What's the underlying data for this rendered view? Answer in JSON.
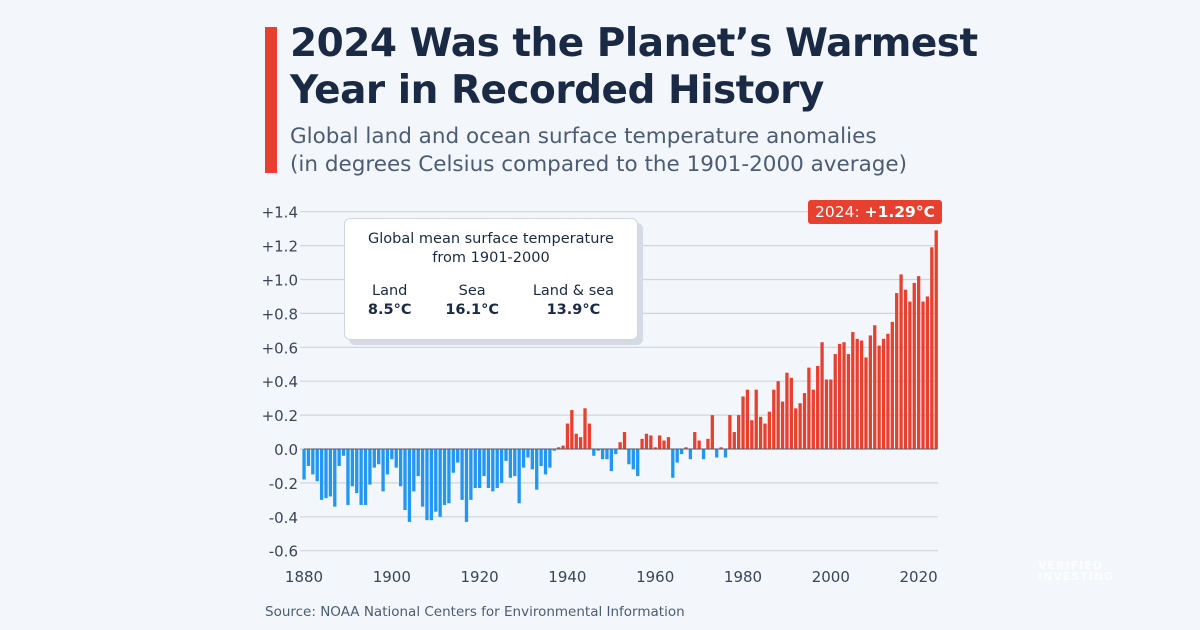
{
  "title": "2024 Was the Planet’s Warmest Year in Recorded History",
  "subtitle_line1": "Global land and ocean surface temperature anomalies",
  "subtitle_line2": "(in degrees Celsius compared to the 1901-2000 average)",
  "inset": {
    "title_line1": "Global mean surface temperature",
    "title_line2": "from 1901-2000",
    "columns": [
      {
        "label": "Land",
        "value": "8.5°C"
      },
      {
        "label": "Sea",
        "value": "16.1°C"
      },
      {
        "label": "Land & sea",
        "value": "13.9°C"
      }
    ]
  },
  "callout": {
    "year": "2024:",
    "value": "+1.29°C"
  },
  "source": "Source: NOAA National Centers for Environmental Information",
  "watermark": [
    "VERIFIED",
    "INVESTING"
  ],
  "colors": {
    "positive": "#e8402f",
    "negative": "#2196f3",
    "title": "#1b2a44",
    "background": "#f3f6fa"
  },
  "chart_data": {
    "type": "bar",
    "xlabel": "",
    "ylabel": "",
    "ylim": [
      -0.6,
      1.4
    ],
    "xlim": [
      1880,
      2024
    ],
    "grid": true,
    "y_ticks": [
      "-0.6",
      "-0.4",
      "-0.2",
      "0.0",
      "+0.2",
      "+0.4",
      "+0.6",
      "+0.8",
      "+1.0",
      "+1.2",
      "+1.4"
    ],
    "x_ticks": [
      "1880",
      "1900",
      "1920",
      "1940",
      "1960",
      "1980",
      "2000",
      "2020"
    ],
    "start_year": 1880,
    "values": [
      -0.18,
      -0.1,
      -0.15,
      -0.19,
      -0.3,
      -0.29,
      -0.28,
      -0.34,
      -0.1,
      -0.04,
      -0.33,
      -0.22,
      -0.26,
      -0.33,
      -0.33,
      -0.21,
      -0.11,
      -0.09,
      -0.25,
      -0.15,
      -0.06,
      -0.11,
      -0.22,
      -0.36,
      -0.43,
      -0.25,
      -0.16,
      -0.34,
      -0.42,
      -0.42,
      -0.37,
      -0.4,
      -0.33,
      -0.32,
      -0.14,
      -0.08,
      -0.3,
      -0.43,
      -0.3,
      -0.23,
      -0.23,
      -0.16,
      -0.23,
      -0.25,
      -0.23,
      -0.2,
      -0.07,
      -0.17,
      -0.16,
      -0.32,
      -0.11,
      -0.05,
      -0.12,
      -0.24,
      -0.1,
      -0.15,
      -0.11,
      -0.01,
      0.01,
      0.02,
      0.15,
      0.23,
      0.09,
      0.07,
      0.24,
      0.15,
      -0.04,
      -0.01,
      -0.06,
      -0.06,
      -0.13,
      -0.03,
      0.04,
      0.1,
      -0.09,
      -0.12,
      -0.16,
      0.06,
      0.09,
      0.08,
      0.01,
      0.08,
      0.05,
      0.07,
      -0.17,
      -0.08,
      -0.03,
      0.01,
      -0.06,
      0.1,
      0.05,
      -0.06,
      0.06,
      0.2,
      -0.05,
      0.01,
      -0.05,
      0.2,
      0.1,
      0.2,
      0.31,
      0.35,
      0.17,
      0.35,
      0.19,
      0.15,
      0.22,
      0.35,
      0.4,
      0.28,
      0.45,
      0.42,
      0.24,
      0.27,
      0.33,
      0.48,
      0.35,
      0.49,
      0.63,
      0.41,
      0.41,
      0.56,
      0.62,
      0.63,
      0.56,
      0.69,
      0.65,
      0.64,
      0.54,
      0.67,
      0.73,
      0.61,
      0.65,
      0.68,
      0.75,
      0.92,
      1.03,
      0.94,
      0.87,
      0.98,
      1.02,
      0.87,
      0.9,
      1.19,
      1.29
    ],
    "annotation": "2024: +1.29°C"
  }
}
